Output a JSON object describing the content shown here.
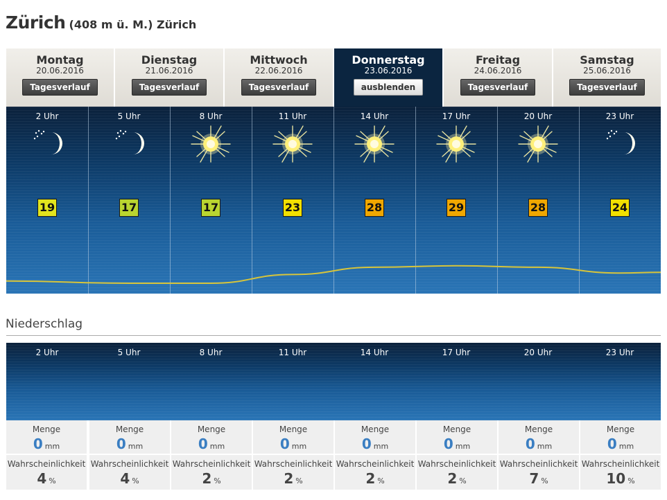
{
  "location": {
    "name": "Zürich",
    "altitude": "(408 m ü. M.) Zürich"
  },
  "days": [
    {
      "name": "Montag",
      "date": "20.06.2016",
      "button": "Tagesverlauf",
      "active": false
    },
    {
      "name": "Dienstag",
      "date": "21.06.2016",
      "button": "Tagesverlauf",
      "active": false
    },
    {
      "name": "Mittwoch",
      "date": "22.06.2016",
      "button": "Tagesverlauf",
      "active": false
    },
    {
      "name": "Donnerstag",
      "date": "23.06.2016",
      "button": "ausblenden",
      "active": true
    },
    {
      "name": "Freitag",
      "date": "24.06.2016",
      "button": "Tagesverlauf",
      "active": false
    },
    {
      "name": "Samstag",
      "date": "25.06.2016",
      "button": "Tagesverlauf",
      "active": false
    }
  ],
  "hours": [
    {
      "time": "2 Uhr",
      "icon": "moon-stars-icon",
      "temp": "19",
      "temp_color": "#e2e41e"
    },
    {
      "time": "5 Uhr",
      "icon": "moon-stars-icon",
      "temp": "17",
      "temp_color": "#b9d530"
    },
    {
      "time": "8 Uhr",
      "icon": "sun-icon",
      "temp": "17",
      "temp_color": "#b9d530"
    },
    {
      "time": "11 Uhr",
      "icon": "sun-icon",
      "temp": "23",
      "temp_color": "#f2e000"
    },
    {
      "time": "14 Uhr",
      "icon": "sun-icon",
      "temp": "28",
      "temp_color": "#f0a700"
    },
    {
      "time": "17 Uhr",
      "icon": "sun-icon",
      "temp": "29",
      "temp_color": "#f0a700"
    },
    {
      "time": "20 Uhr",
      "icon": "sun-icon",
      "temp": "28",
      "temp_color": "#f0a700"
    },
    {
      "time": "23 Uhr",
      "icon": "moon-stars-icon",
      "temp": "24",
      "temp_color": "#f2e000"
    }
  ],
  "precip_section": {
    "title": "Niederschlag"
  },
  "precip": [
    {
      "time": "2 Uhr",
      "amount_label": "Menge",
      "amount": "0",
      "amount_unit": "mm",
      "prob_label": "Wahrscheinlichkeit",
      "prob": "4",
      "prob_unit": "%"
    },
    {
      "time": "5 Uhr",
      "amount_label": "Menge",
      "amount": "0",
      "amount_unit": "mm",
      "prob_label": "Wahrscheinlichkeit",
      "prob": "4",
      "prob_unit": "%"
    },
    {
      "time": "8 Uhr",
      "amount_label": "Menge",
      "amount": "0",
      "amount_unit": "mm",
      "prob_label": "Wahrscheinlichkeit",
      "prob": "2",
      "prob_unit": "%"
    },
    {
      "time": "11 Uhr",
      "amount_label": "Menge",
      "amount": "0",
      "amount_unit": "mm",
      "prob_label": "Wahrscheinlichkeit",
      "prob": "2",
      "prob_unit": "%"
    },
    {
      "time": "14 Uhr",
      "amount_label": "Menge",
      "amount": "0",
      "amount_unit": "mm",
      "prob_label": "Wahrscheinlichkeit",
      "prob": "2",
      "prob_unit": "%"
    },
    {
      "time": "17 Uhr",
      "amount_label": "Menge",
      "amount": "0",
      "amount_unit": "mm",
      "prob_label": "Wahrscheinlichkeit",
      "prob": "2",
      "prob_unit": "%"
    },
    {
      "time": "20 Uhr",
      "amount_label": "Menge",
      "amount": "0",
      "amount_unit": "mm",
      "prob_label": "Wahrscheinlichkeit",
      "prob": "7",
      "prob_unit": "%"
    },
    {
      "time": "23 Uhr",
      "amount_label": "Menge",
      "amount": "0",
      "amount_unit": "mm",
      "prob_label": "Wahrscheinlichkeit",
      "prob": "10",
      "prob_unit": "%"
    }
  ],
  "colors": {
    "curve": "#d8c53a",
    "panel_dark": "#0b213b",
    "panel_light": "#2a75b6",
    "active_tab": "#0b2540",
    "amount_value": "#3a7ec2"
  }
}
